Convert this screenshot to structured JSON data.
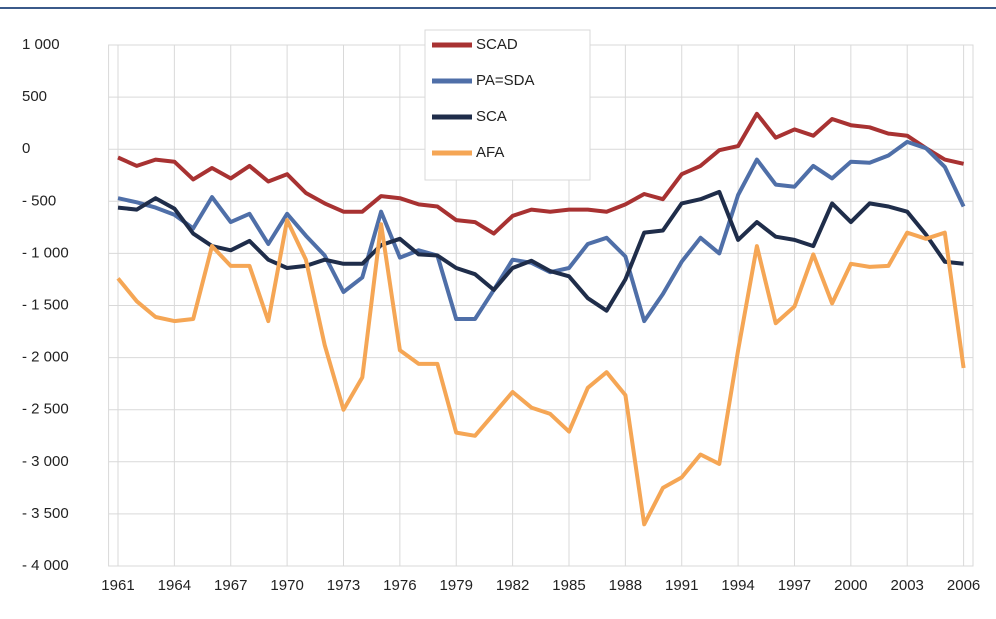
{
  "chart_data": {
    "type": "line",
    "x": [
      1961,
      1962,
      1963,
      1964,
      1965,
      1966,
      1967,
      1968,
      1969,
      1970,
      1971,
      1972,
      1973,
      1974,
      1975,
      1976,
      1977,
      1978,
      1979,
      1980,
      1981,
      1982,
      1983,
      1984,
      1985,
      1986,
      1987,
      1988,
      1989,
      1990,
      1991,
      1992,
      1993,
      1994,
      1995,
      1996,
      1997,
      1998,
      1999,
      2000,
      2001,
      2002,
      2003,
      2004,
      2005,
      2006
    ],
    "series": [
      {
        "name": "SCAD",
        "color": "#a83232",
        "values": [
          -80,
          -160,
          -100,
          -120,
          -290,
          -180,
          -280,
          -160,
          -310,
          -240,
          -420,
          -520,
          -600,
          -600,
          -450,
          -470,
          -530,
          -550,
          -680,
          -700,
          -810,
          -640,
          -580,
          -600,
          -580,
          -580,
          -600,
          -530,
          -430,
          -480,
          -240,
          -160,
          -10,
          30,
          340,
          110,
          190,
          130,
          290,
          230,
          210,
          150,
          130,
          10,
          -100,
          -140
        ]
      },
      {
        "name": "PA=SDA",
        "color": "#4f6fa8",
        "values": [
          -470,
          -510,
          -560,
          -630,
          -760,
          -460,
          -700,
          -620,
          -910,
          -620,
          -830,
          -1020,
          -1370,
          -1230,
          -600,
          -1040,
          -970,
          -1020,
          -1630,
          -1630,
          -1350,
          -1060,
          -1090,
          -1180,
          -1140,
          -910,
          -850,
          -1030,
          -1650,
          -1390,
          -1080,
          -850,
          -1000,
          -440,
          -100,
          -340,
          -360,
          -160,
          -280,
          -120,
          -130,
          -60,
          70,
          10,
          -170,
          -550
        ]
      },
      {
        "name": "SCA",
        "color": "#1f2d4a",
        "values": [
          -560,
          -580,
          -470,
          -570,
          -810,
          -930,
          -970,
          -880,
          -1060,
          -1140,
          -1120,
          -1060,
          -1100,
          -1100,
          -920,
          -860,
          -1010,
          -1020,
          -1140,
          -1200,
          -1350,
          -1140,
          -1070,
          -1170,
          -1220,
          -1430,
          -1550,
          -1250,
          -800,
          -780,
          -520,
          -480,
          -410,
          -870,
          -700,
          -840,
          -870,
          -930,
          -520,
          -700,
          -520,
          -550,
          -600,
          -820,
          -1080,
          -1100
        ]
      },
      {
        "name": "AFA",
        "color": "#f5a655",
        "values": [
          -1240,
          -1460,
          -1610,
          -1650,
          -1630,
          -930,
          -1120,
          -1120,
          -1650,
          -680,
          -1060,
          -1880,
          -2500,
          -2190,
          -720,
          -1930,
          -2060,
          -2060,
          -2720,
          -2750,
          -2540,
          -2330,
          -2480,
          -2540,
          -2710,
          -2290,
          -2140,
          -2360,
          -3600,
          -3250,
          -3150,
          -2930,
          -3020,
          -1930,
          -930,
          -1670,
          -1510,
          -1010,
          -1480,
          -1100,
          -1130,
          -1120,
          -800,
          -860,
          -800,
          -2100
        ]
      }
    ],
    "xlim": [
      1960.5,
      2006.5
    ],
    "xticks": [
      1961,
      1964,
      1967,
      1970,
      1973,
      1976,
      1979,
      1982,
      1985,
      1988,
      1991,
      1994,
      1997,
      2000,
      2003,
      2006
    ],
    "ylim": [
      -4000,
      1000
    ],
    "yticks": [
      {
        "value": 1000,
        "label": "1 000"
      },
      500,
      0,
      {
        "value": -500,
        "label": "- 500"
      },
      {
        "value": -1000,
        "label": "- 1 000"
      },
      {
        "value": -1500,
        "label": "- 1 500"
      },
      {
        "value": -2000,
        "label": "- 2 000"
      },
      {
        "value": -2500,
        "label": "- 2 500"
      },
      {
        "value": -3000,
        "label": "- 3 000"
      },
      {
        "value": -3500,
        "label": "- 3 500"
      },
      {
        "value": -4000,
        "label": "- 4 000"
      }
    ],
    "grid": true,
    "legend": "top"
  }
}
